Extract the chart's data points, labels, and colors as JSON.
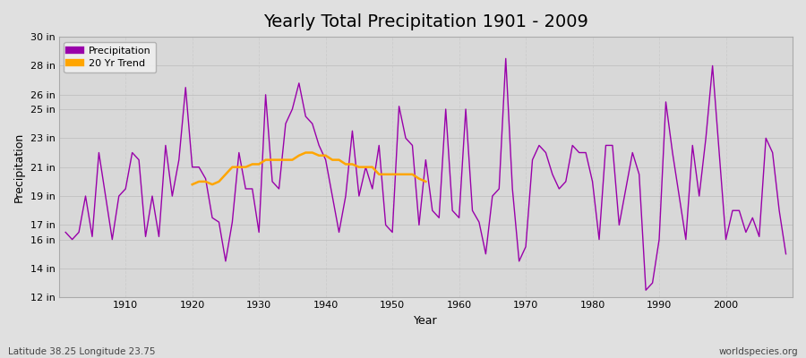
{
  "title": "Yearly Total Precipitation 1901 - 2009",
  "xlabel": "Year",
  "ylabel": "Precipitation",
  "subtitle": "Latitude 38.25 Longitude 23.75",
  "watermark": "worldspecies.org",
  "years": [
    1901,
    1902,
    1903,
    1904,
    1905,
    1906,
    1907,
    1908,
    1909,
    1910,
    1911,
    1912,
    1913,
    1914,
    1915,
    1916,
    1917,
    1918,
    1919,
    1920,
    1921,
    1922,
    1923,
    1924,
    1925,
    1926,
    1927,
    1928,
    1929,
    1930,
    1931,
    1932,
    1933,
    1934,
    1935,
    1936,
    1937,
    1938,
    1939,
    1940,
    1941,
    1942,
    1943,
    1944,
    1945,
    1946,
    1947,
    1948,
    1949,
    1950,
    1951,
    1952,
    1953,
    1954,
    1955,
    1956,
    1957,
    1958,
    1959,
    1960,
    1961,
    1962,
    1963,
    1964,
    1965,
    1966,
    1967,
    1968,
    1969,
    1970,
    1971,
    1972,
    1973,
    1974,
    1975,
    1976,
    1977,
    1978,
    1979,
    1980,
    1981,
    1982,
    1983,
    1984,
    1985,
    1986,
    1987,
    1988,
    1989,
    1990,
    1991,
    1992,
    1993,
    1994,
    1995,
    1996,
    1997,
    1998,
    1999,
    2000,
    2001,
    2002,
    2003,
    2004,
    2005,
    2006,
    2007,
    2008,
    2009
  ],
  "precip": [
    16.5,
    16.0,
    16.5,
    19.0,
    16.2,
    22.0,
    19.0,
    16.0,
    19.0,
    19.5,
    22.0,
    21.5,
    16.2,
    19.0,
    16.2,
    22.5,
    19.0,
    21.5,
    26.5,
    21.0,
    21.0,
    20.2,
    17.5,
    17.2,
    14.5,
    17.2,
    22.0,
    19.5,
    19.5,
    16.5,
    26.0,
    20.0,
    19.5,
    24.0,
    25.0,
    26.8,
    24.5,
    24.0,
    22.5,
    21.5,
    19.0,
    16.5,
    19.0,
    23.5,
    19.0,
    21.0,
    19.5,
    22.5,
    17.0,
    16.5,
    25.2,
    23.0,
    22.5,
    17.0,
    21.5,
    18.0,
    17.5,
    25.0,
    18.0,
    17.5,
    25.0,
    18.0,
    17.2,
    15.0,
    19.0,
    19.5,
    28.5,
    19.5,
    14.5,
    15.5,
    21.5,
    22.5,
    22.0,
    20.5,
    19.5,
    20.0,
    22.5,
    22.0,
    22.0,
    20.0,
    16.0,
    22.5,
    22.5,
    17.0,
    19.5,
    22.0,
    20.5,
    12.5,
    13.0,
    16.0,
    25.5,
    22.0,
    19.0,
    16.0,
    22.5,
    19.0,
    23.0,
    28.0,
    22.0,
    16.0,
    18.0,
    18.0,
    16.5,
    17.5,
    16.2,
    23.0,
    22.0,
    18.0,
    15.0
  ],
  "trend_years": [
    1920,
    1921,
    1922,
    1923,
    1924,
    1925,
    1926,
    1927,
    1928,
    1929,
    1930,
    1931,
    1932,
    1933,
    1934,
    1935,
    1936,
    1937,
    1938,
    1939,
    1940,
    1941,
    1942,
    1943,
    1944,
    1945,
    1946,
    1947,
    1948,
    1949,
    1950,
    1951,
    1952,
    1953,
    1954,
    1955
  ],
  "trend_values": [
    19.8,
    20.0,
    20.0,
    19.8,
    20.0,
    20.5,
    21.0,
    21.0,
    21.0,
    21.2,
    21.2,
    21.5,
    21.5,
    21.5,
    21.5,
    21.5,
    21.8,
    22.0,
    22.0,
    21.8,
    21.8,
    21.5,
    21.5,
    21.2,
    21.2,
    21.0,
    21.0,
    21.0,
    20.5,
    20.5,
    20.5,
    20.5,
    20.5,
    20.5,
    20.2,
    20.0
  ],
  "precip_color": "#9900AA",
  "trend_color": "#FFA500",
  "fig_bg_color": "#E0E0E0",
  "plot_bg_color": "#D8D8D8",
  "grid_color_h": "#BEBEBE",
  "grid_color_v": "#C8C8C8",
  "ylim": [
    12,
    30
  ],
  "xlim": [
    1900,
    2010
  ],
  "yticks": [
    12,
    14,
    16,
    17,
    19,
    21,
    23,
    25,
    26,
    28,
    30
  ],
  "ytick_labels": [
    "12 in",
    "14 in",
    "16 in",
    "17 in",
    "19 in",
    "21 in",
    "23 in",
    "25 in",
    "26 in",
    "28 in",
    "30 in"
  ],
  "xticks": [
    1910,
    1920,
    1930,
    1940,
    1950,
    1960,
    1970,
    1980,
    1990,
    2000
  ],
  "title_fontsize": 14,
  "axis_label_fontsize": 9,
  "tick_fontsize": 8,
  "legend_fontsize": 8
}
